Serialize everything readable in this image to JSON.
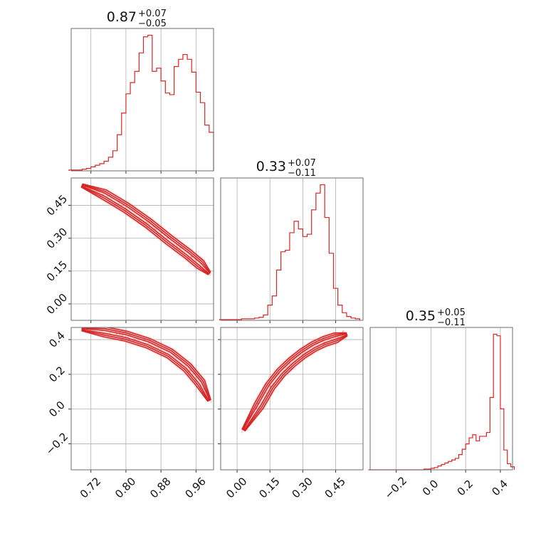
{
  "chart_data": {
    "type": "corner",
    "colors": {
      "series": "#d62728",
      "grid": "#b0b0b0",
      "frame": "#6b6b6b"
    },
    "parameters": [
      {
        "range": [
          0.675,
          1.0
        ],
        "ticks": [
          0.72,
          0.8,
          0.88,
          0.96
        ],
        "tick_labels": [
          "0.72",
          "0.80",
          "0.88",
          "0.96"
        ]
      },
      {
        "range": [
          -0.075,
          0.575
        ],
        "ticks": [
          0.0,
          0.15,
          0.3,
          0.45
        ],
        "tick_labels": [
          "0.00",
          "0.15",
          "0.30",
          "0.45"
        ]
      },
      {
        "range": [
          -0.35,
          0.47
        ],
        "ticks": [
          -0.2,
          0.0,
          0.2,
          0.4
        ],
        "tick_labels": [
          "−0.2",
          "0.0",
          "0.2",
          "0.4"
        ]
      }
    ],
    "titles": [
      {
        "value": "0.87",
        "plus": "+0.07",
        "minus": "−0.05"
      },
      {
        "value": "0.33",
        "plus": "+0.07",
        "minus": "−0.11"
      },
      {
        "value": "0.35",
        "plus": "+0.05",
        "minus": "−0.11"
      }
    ],
    "histograms": [
      {
        "param": 0,
        "x": [
          0.675,
          0.685,
          0.695,
          0.705,
          0.715,
          0.725,
          0.735,
          0.745,
          0.755,
          0.765,
          0.775,
          0.785,
          0.795,
          0.805,
          0.815,
          0.825,
          0.835,
          0.845,
          0.855,
          0.865,
          0.875,
          0.885,
          0.895,
          0.905,
          0.915,
          0.925,
          0.935,
          0.945,
          0.955,
          0.965,
          0.975,
          0.985,
          0.995
        ],
        "values": [
          1,
          1,
          1,
          2,
          3,
          5,
          7,
          9,
          12,
          17,
          25,
          45,
          72,
          96,
          110,
          124,
          147,
          167,
          169,
          124,
          128,
          112,
          97,
          95,
          130,
          139,
          145,
          139,
          123,
          98,
          85,
          57,
          48
        ]
      },
      {
        "param": 1,
        "x": [
          -0.07,
          -0.05,
          -0.03,
          -0.01,
          0.01,
          0.03,
          0.05,
          0.07,
          0.09,
          0.11,
          0.13,
          0.15,
          0.17,
          0.19,
          0.21,
          0.23,
          0.25,
          0.27,
          0.29,
          0.31,
          0.33,
          0.35,
          0.37,
          0.39,
          0.41,
          0.43,
          0.45,
          0.47,
          0.49,
          0.51,
          0.53,
          0.55
        ],
        "values": [
          1,
          1,
          1,
          1,
          1,
          2,
          2,
          2,
          3,
          4,
          7,
          20,
          32,
          66,
          90,
          92,
          115,
          130,
          120,
          110,
          113,
          145,
          167,
          178,
          135,
          88,
          42,
          20,
          10,
          5,
          3,
          2
        ]
      },
      {
        "param": 2,
        "x": [
          -0.35,
          -0.33,
          -0.31,
          -0.29,
          -0.27,
          -0.25,
          -0.23,
          -0.21,
          -0.19,
          -0.17,
          -0.15,
          -0.13,
          -0.11,
          -0.09,
          -0.07,
          -0.05,
          -0.03,
          -0.01,
          0.01,
          0.03,
          0.05,
          0.07,
          0.09,
          0.11,
          0.13,
          0.15,
          0.17,
          0.19,
          0.21,
          0.23,
          0.25,
          0.27,
          0.29,
          0.31,
          0.33,
          0.35,
          0.37,
          0.39,
          0.41,
          0.43,
          0.45,
          0.47
        ],
        "values": [
          0,
          0,
          0,
          0,
          0,
          0,
          0,
          0,
          0,
          0,
          0,
          0,
          0,
          0,
          0,
          0,
          1,
          1,
          2,
          3,
          5,
          7,
          9,
          11,
          13,
          15,
          20,
          27,
          34,
          42,
          46,
          38,
          44,
          44,
          49,
          95,
          178,
          176,
          80,
          26,
          8,
          4
        ]
      }
    ],
    "pairs": [
      {
        "x_param": 0,
        "y_param": 1,
        "ridge_x": [
          0.7,
          0.75,
          0.8,
          0.85,
          0.9,
          0.94,
          0.97,
          0.99
        ],
        "ridge_y": [
          0.54,
          0.5,
          0.44,
          0.37,
          0.29,
          0.23,
          0.18,
          0.14
        ]
      },
      {
        "x_param": 0,
        "y_param": 2,
        "ridge_x": [
          0.7,
          0.75,
          0.8,
          0.85,
          0.9,
          0.94,
          0.97,
          0.99
        ],
        "ridge_y": [
          0.46,
          0.445,
          0.42,
          0.38,
          0.32,
          0.24,
          0.15,
          0.05
        ]
      },
      {
        "x_param": 1,
        "y_param": 2,
        "ridge_x": [
          0.03,
          0.1,
          0.15,
          0.2,
          0.25,
          0.3,
          0.35,
          0.4,
          0.45,
          0.5
        ],
        "ridge_y": [
          -0.12,
          0.02,
          0.13,
          0.21,
          0.27,
          0.32,
          0.36,
          0.39,
          0.41,
          0.43
        ]
      }
    ]
  }
}
